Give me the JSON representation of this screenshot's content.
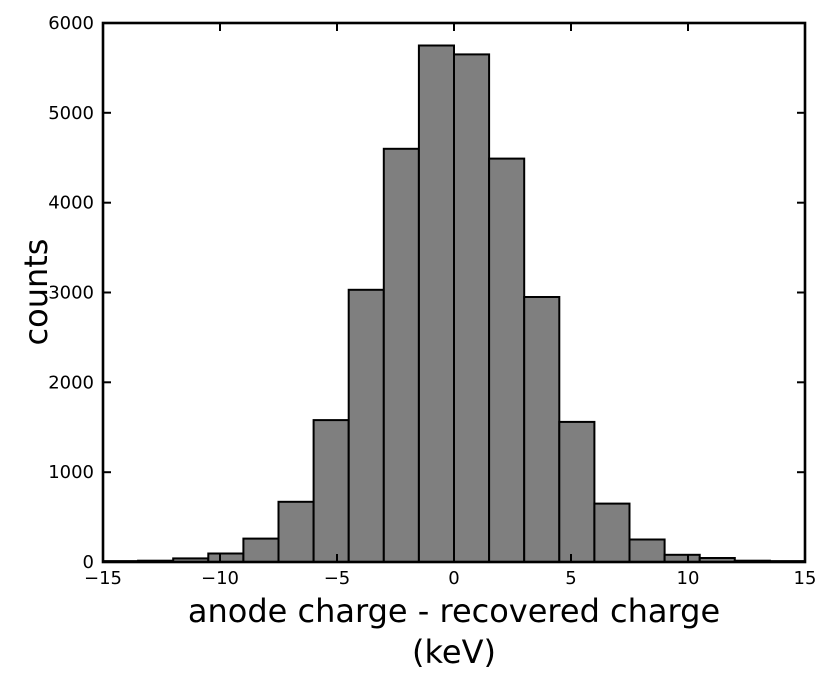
{
  "figure": {
    "background": "#ffffff",
    "text_color": "#000000"
  },
  "chart_data": {
    "type": "bar",
    "subtype": "histogram",
    "title": "",
    "xlabel_line1": "anode charge - recovered charge",
    "xlabel_line2": "(keV)",
    "ylabel": "counts",
    "xlim": [
      -15,
      15
    ],
    "ylim": [
      0,
      6000
    ],
    "grid": false,
    "legend": null,
    "bin_edges": [
      -15,
      -13.5,
      -12,
      -10.5,
      -9,
      -7.5,
      -6,
      -4.5,
      -3,
      -1.5,
      0,
      1.5,
      3,
      4.5,
      6,
      7.5,
      9,
      10.5,
      12,
      13.5,
      15
    ],
    "counts": [
      10,
      15,
      40,
      95,
      260,
      670,
      1580,
      3030,
      4600,
      5750,
      5650,
      4490,
      2950,
      1560,
      650,
      250,
      80,
      45,
      15,
      10
    ],
    "x_ticks": [
      -15,
      -10,
      -5,
      0,
      5,
      10,
      15
    ],
    "x_tick_labels": [
      "−15",
      "−10",
      "−5",
      "0",
      "5",
      "10",
      "15"
    ],
    "y_ticks": [
      0,
      1000,
      2000,
      3000,
      4000,
      5000,
      6000
    ],
    "y_tick_labels": [
      "0",
      "1000",
      "2000",
      "3000",
      "4000",
      "5000",
      "6000"
    ],
    "bar_fill": "#7f7f7f",
    "bar_edge": "#000000",
    "axis_color": "#000000",
    "ticks_direction": "in",
    "ticks_all_sides": true
  }
}
